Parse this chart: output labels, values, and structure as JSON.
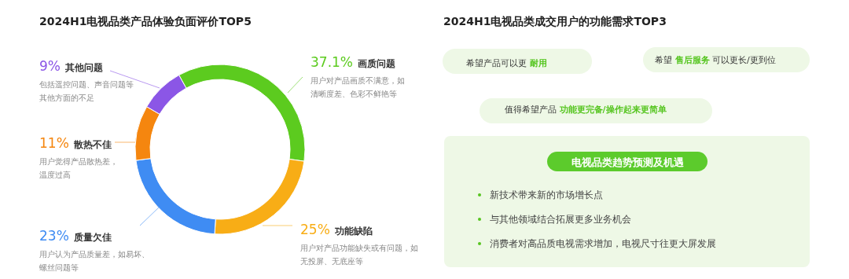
{
  "chart_data": [
    {
      "type": "donut",
      "title": "2024H1电视品类产品体验负面评价TOP5",
      "categories": [
        "画质问题",
        "功能缺陷",
        "质量欠佳",
        "散热不佳",
        "其他问题"
      ],
      "values": [
        37.1,
        25,
        23,
        11,
        9
      ],
      "value_labels": [
        "37.1%",
        "25%",
        "23%",
        "11%",
        "9%"
      ],
      "colors": [
        "#5ccb1f",
        "#f8ad16",
        "#3f8cf3",
        "#f5860f",
        "#8b56e6"
      ],
      "annotations": [
        "用户对产品画质不满意，如清晰度差、色彩不鲜艳等",
        "用户对产品功能缺失或有问题，如无投屏、无底座等",
        "用户认为产品质量差，如易坏、螺丝问题等",
        "用户觉得产品散热差，温度过高",
        "包括遥控问题、声音问题等其他方面的不足"
      ]
    },
    {
      "type": "other",
      "title": "2024H1电视品类成交用户的功能需求TOP3",
      "annotations": [
        "希望产品可以更 **耐用**",
        "希望 **售后服务** 可以更长/更到位",
        "值得希望产品 **功能更完备/操作起来更简单**",
        "电视品类趋势预测及机遇",
        "新技术带来新的市场增长点",
        "与其他领域结合拓展更多业务机会",
        "消费者对高品质电视需求增加，电视尺寸往更大屏发展"
      ]
    }
  ]
}
